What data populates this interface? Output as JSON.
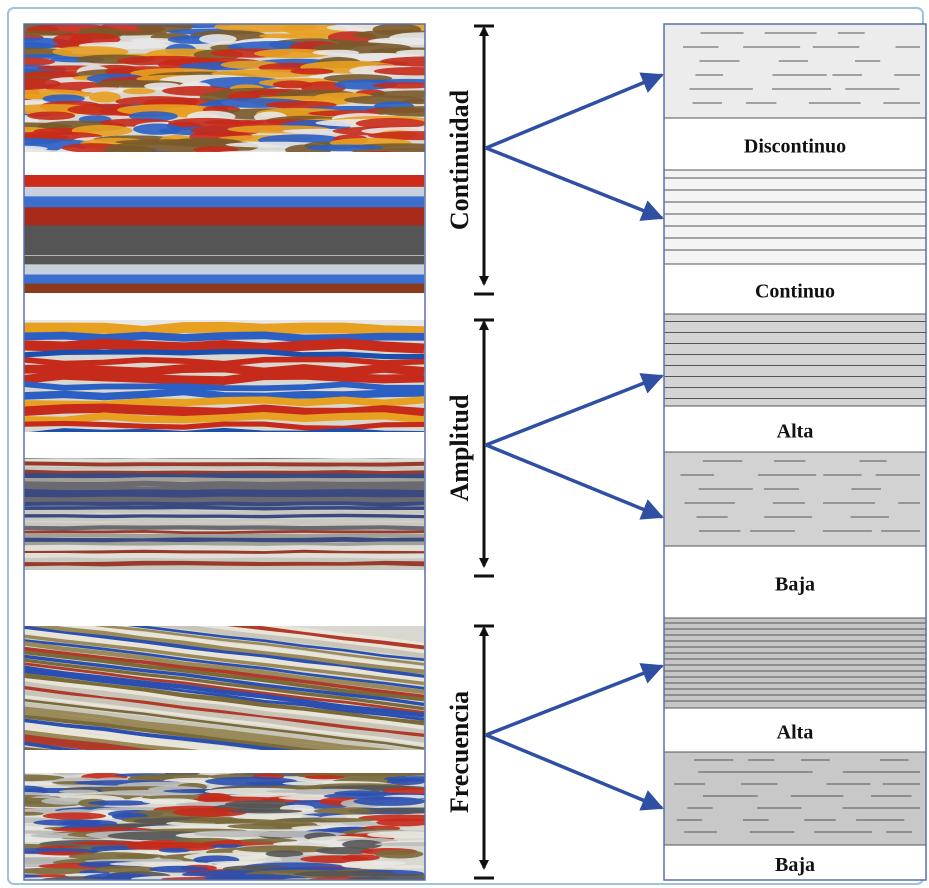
{
  "parameters": [
    {
      "label": "Continuidad",
      "classes": [
        "Discontinuo",
        "Continuo"
      ]
    },
    {
      "label": "Amplitud",
      "classes": [
        "Alta",
        "Baja"
      ]
    },
    {
      "label": "Frecuencia",
      "classes": [
        "Alta",
        "Baja"
      ]
    }
  ]
}
